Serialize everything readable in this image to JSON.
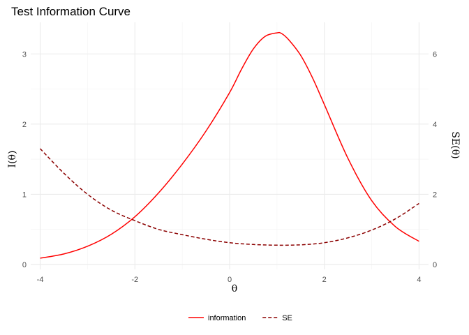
{
  "chart_data": {
    "type": "line",
    "title": "Test Information Curve",
    "xlabel": "θ",
    "ylabel": "I(θ)",
    "y2label": "SE(θ)",
    "xlim": [
      -4.2,
      4.2
    ],
    "ylim": [
      -0.07,
      3.45
    ],
    "y2lim": [
      -0.14,
      6.9
    ],
    "x_ticks": [
      -4,
      -2,
      0,
      2,
      4
    ],
    "x_tick_labels": [
      "-4",
      "-2",
      "0",
      "2",
      "4"
    ],
    "y_ticks": [
      0,
      1,
      2,
      3
    ],
    "y_tick_labels": [
      "0",
      "1",
      "2",
      "3"
    ],
    "y2_ticks": [
      0,
      2,
      4,
      6
    ],
    "y2_tick_labels": [
      "0",
      "2",
      "4",
      "6"
    ],
    "grid": true,
    "legend_position": "bottom",
    "series": [
      {
        "name": "information",
        "axis": "left",
        "color": "#ff0000",
        "dash": "solid",
        "x": [
          -4.0,
          -3.5,
          -3.0,
          -2.5,
          -2.0,
          -1.5,
          -1.0,
          -0.5,
          0.0,
          0.25,
          0.5,
          0.75,
          1.0,
          1.1,
          1.25,
          1.5,
          1.75,
          2.0,
          2.5,
          3.0,
          3.5,
          4.0
        ],
        "values": [
          0.09,
          0.15,
          0.26,
          0.43,
          0.68,
          1.02,
          1.43,
          1.9,
          2.45,
          2.78,
          3.07,
          3.25,
          3.3,
          3.29,
          3.2,
          2.98,
          2.66,
          2.28,
          1.51,
          0.91,
          0.54,
          0.33
        ]
      },
      {
        "name": "SE",
        "axis": "right",
        "color": "#8b0000",
        "dash": "dashed",
        "x": [
          -4.0,
          -3.5,
          -3.0,
          -2.5,
          -2.0,
          -1.5,
          -1.0,
          -0.5,
          0.0,
          0.5,
          1.0,
          1.5,
          2.0,
          2.5,
          3.0,
          3.5,
          4.0
        ],
        "values": [
          3.3,
          2.6,
          2.0,
          1.55,
          1.25,
          1.0,
          0.85,
          0.72,
          0.62,
          0.57,
          0.55,
          0.56,
          0.62,
          0.76,
          0.98,
          1.3,
          1.74
        ]
      }
    ]
  }
}
